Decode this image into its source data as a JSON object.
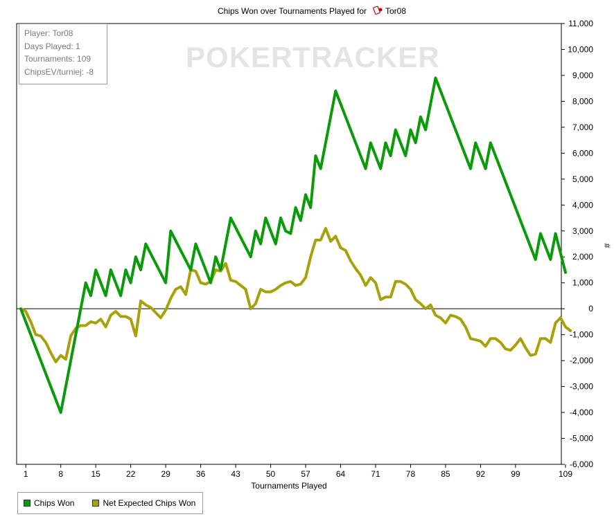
{
  "chart_data": {
    "type": "line",
    "title_prefix": "Chips Won over Tournaments Played for",
    "player_name": "Tor08",
    "icon": "poker-chip-card-icon",
    "watermark": "POKERTRACKER",
    "xlabel": "Tournaments Played",
    "ylabel": "#",
    "xlim": [
      0,
      109
    ],
    "ylim": [
      -6000,
      11000
    ],
    "x_ticks": [
      1,
      8,
      15,
      22,
      29,
      36,
      43,
      50,
      57,
      64,
      71,
      78,
      85,
      92,
      99,
      109
    ],
    "y_ticks": [
      -6000,
      -5000,
      -4000,
      -3000,
      -2000,
      -1000,
      0,
      1000,
      2000,
      3000,
      4000,
      5000,
      6000,
      7000,
      8000,
      9000,
      10000,
      11000
    ],
    "y_tick_labels": [
      "-6,000",
      "-5,000",
      "-4,000",
      "-3,000",
      "-2,000",
      "-1,000",
      "0",
      "1,000",
      "2,000",
      "3,000",
      "4,000",
      "5,000",
      "6,000",
      "7,000",
      "8,000",
      "9,000",
      "10,000",
      "11,000"
    ],
    "info_box": [
      "Player: Tor08",
      "Days Played: 1",
      "Tournaments: 109",
      "ChipsEV/turniej: -8"
    ],
    "series": [
      {
        "name": "Chips Won",
        "color": "#0a9a0a",
        "points": [
          [
            0,
            0
          ],
          [
            8,
            -4000
          ],
          [
            13,
            1000
          ],
          [
            14,
            500
          ],
          [
            15,
            1500
          ],
          [
            17,
            500
          ],
          [
            18,
            1500
          ],
          [
            20,
            500
          ],
          [
            21,
            1500
          ],
          [
            22,
            1000
          ],
          [
            23,
            2000
          ],
          [
            24,
            1500
          ],
          [
            25,
            2500
          ],
          [
            29,
            1000
          ],
          [
            30,
            3000
          ],
          [
            34,
            1500
          ],
          [
            35,
            2500
          ],
          [
            38,
            1000
          ],
          [
            39,
            2000
          ],
          [
            40,
            1500
          ],
          [
            42,
            3500
          ],
          [
            46,
            2000
          ],
          [
            47,
            3000
          ],
          [
            48,
            2500
          ],
          [
            49,
            3500
          ],
          [
            51,
            2500
          ],
          [
            52,
            3500
          ],
          [
            53,
            3000
          ],
          [
            54,
            2900
          ],
          [
            55,
            3900
          ],
          [
            56,
            3400
          ],
          [
            57,
            4400
          ],
          [
            58,
            3900
          ],
          [
            59,
            5900
          ],
          [
            60,
            5400
          ],
          [
            63,
            8400
          ],
          [
            69,
            5400
          ],
          [
            70,
            6400
          ],
          [
            72,
            5400
          ],
          [
            73,
            6400
          ],
          [
            74,
            5900
          ],
          [
            75,
            6900
          ],
          [
            77,
            5900
          ],
          [
            78,
            6900
          ],
          [
            79,
            6400
          ],
          [
            80,
            7400
          ],
          [
            81,
            6900
          ],
          [
            83,
            8900
          ],
          [
            90,
            5400
          ],
          [
            91,
            6400
          ],
          [
            93,
            5400
          ],
          [
            94,
            6400
          ],
          [
            103,
            1900
          ],
          [
            104,
            2900
          ],
          [
            106,
            1900
          ],
          [
            107,
            2900
          ],
          [
            109,
            1400
          ]
        ]
      },
      {
        "name": "Net Expected Chips Won",
        "color": "#a8a20a",
        "points": [
          [
            0,
            0
          ],
          [
            1,
            -100
          ],
          [
            2,
            -500
          ],
          [
            3,
            -1000
          ],
          [
            4,
            -1050
          ],
          [
            5,
            -1300
          ],
          [
            6,
            -1700
          ],
          [
            7,
            -2050
          ],
          [
            8,
            -1800
          ],
          [
            9,
            -1950
          ],
          [
            10,
            -1050
          ],
          [
            11,
            -750
          ],
          [
            12,
            -650
          ],
          [
            13,
            -650
          ],
          [
            14,
            -500
          ],
          [
            15,
            -550
          ],
          [
            16,
            -400
          ],
          [
            17,
            -700
          ],
          [
            18,
            -250
          ],
          [
            19,
            -100
          ],
          [
            20,
            -300
          ],
          [
            21,
            -300
          ],
          [
            22,
            -400
          ],
          [
            23,
            -1050
          ],
          [
            24,
            300
          ],
          [
            25,
            150
          ],
          [
            26,
            50
          ],
          [
            27,
            -150
          ],
          [
            28,
            -350
          ],
          [
            29,
            -50
          ],
          [
            30,
            400
          ],
          [
            31,
            750
          ],
          [
            32,
            850
          ],
          [
            33,
            550
          ],
          [
            34,
            1500
          ],
          [
            35,
            1450
          ],
          [
            36,
            1000
          ],
          [
            37,
            950
          ],
          [
            38,
            1050
          ],
          [
            39,
            1500
          ],
          [
            40,
            1450
          ],
          [
            41,
            1750
          ],
          [
            42,
            1100
          ],
          [
            43,
            1050
          ],
          [
            44,
            900
          ],
          [
            45,
            750
          ],
          [
            46,
            0
          ],
          [
            47,
            200
          ],
          [
            48,
            750
          ],
          [
            49,
            650
          ],
          [
            50,
            650
          ],
          [
            51,
            750
          ],
          [
            52,
            900
          ],
          [
            53,
            1000
          ],
          [
            54,
            1050
          ],
          [
            55,
            900
          ],
          [
            56,
            950
          ],
          [
            57,
            1200
          ],
          [
            58,
            2000
          ],
          [
            59,
            2650
          ],
          [
            60,
            2650
          ],
          [
            61,
            3100
          ],
          [
            62,
            2600
          ],
          [
            63,
            2800
          ],
          [
            64,
            2350
          ],
          [
            65,
            2250
          ],
          [
            66,
            1850
          ],
          [
            67,
            1550
          ],
          [
            68,
            1300
          ],
          [
            69,
            900
          ],
          [
            70,
            1200
          ],
          [
            71,
            1000
          ],
          [
            72,
            350
          ],
          [
            73,
            450
          ],
          [
            74,
            450
          ],
          [
            75,
            1050
          ],
          [
            76,
            1050
          ],
          [
            77,
            950
          ],
          [
            78,
            750
          ],
          [
            79,
            350
          ],
          [
            80,
            200
          ],
          [
            81,
            0
          ],
          [
            82,
            150
          ],
          [
            83,
            -250
          ],
          [
            84,
            -350
          ],
          [
            85,
            -550
          ],
          [
            86,
            -250
          ],
          [
            87,
            -300
          ],
          [
            88,
            -400
          ],
          [
            89,
            -700
          ],
          [
            90,
            -1150
          ],
          [
            91,
            -1200
          ],
          [
            92,
            -1250
          ],
          [
            93,
            -1450
          ],
          [
            94,
            -1150
          ],
          [
            95,
            -1150
          ],
          [
            96,
            -1300
          ],
          [
            97,
            -1550
          ],
          [
            98,
            -1600
          ],
          [
            99,
            -1400
          ],
          [
            100,
            -1150
          ],
          [
            101,
            -1500
          ],
          [
            102,
            -1800
          ],
          [
            103,
            -1750
          ],
          [
            104,
            -1150
          ],
          [
            105,
            -1150
          ],
          [
            106,
            -1300
          ],
          [
            107,
            -550
          ],
          [
            108,
            -350
          ],
          [
            109,
            -700
          ],
          [
            110,
            -850
          ]
        ]
      }
    ],
    "legend": [
      {
        "label": "Chips Won",
        "color": "#0a9a0a"
      },
      {
        "label": "Net Expected Chips Won",
        "color": "#a8a20a"
      }
    ],
    "grid": false,
    "legend_position": "bottom-left"
  }
}
